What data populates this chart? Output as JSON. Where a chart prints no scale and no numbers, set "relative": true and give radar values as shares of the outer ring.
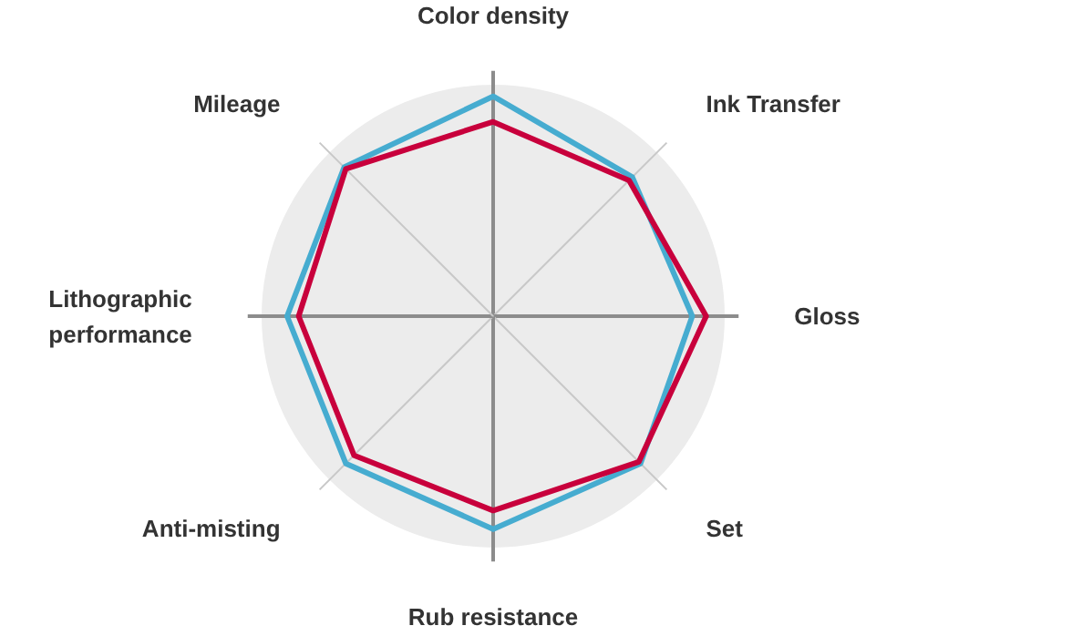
{
  "chart_data": {
    "type": "radar",
    "relative": true,
    "categories": [
      "Color density",
      "Ink Transfer",
      "Gloss",
      "Set",
      "Rub resistance",
      "Anti-misting",
      "Lithographic performance",
      "Mileage"
    ],
    "series": [
      {
        "color": "#46acd0",
        "values": [
          0.95,
          0.85,
          0.86,
          0.9,
          0.92,
          0.9,
          0.89,
          0.91
        ]
      },
      {
        "color": "#c8003c",
        "values": [
          0.84,
          0.83,
          0.92,
          0.89,
          0.84,
          0.85,
          0.84,
          0.9
        ]
      }
    ]
  }
}
